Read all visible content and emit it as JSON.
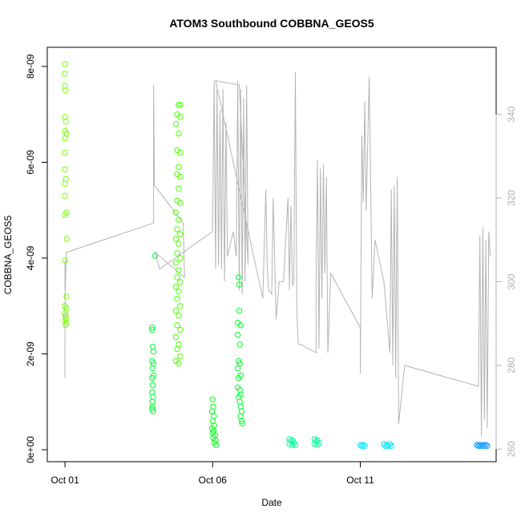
{
  "chart_data": {
    "type": "scatter",
    "title": "ATOM3 Southbound COBBNA_GEOS5",
    "xlabel": "Date",
    "ylabel": "COBBNA_GEOS5",
    "x_ticks": [
      "Oct 01",
      "Oct 06",
      "Oct 11"
    ],
    "x_tick_values": [
      1.0,
      6.0,
      11.0
    ],
    "xlim": [
      0.4,
      15.6
    ],
    "y_ticks": [
      "0e+00",
      "2e-09",
      "4e-09",
      "6e-09",
      "8e-09"
    ],
    "y_tick_values": [
      0,
      2e-09,
      4e-09,
      6e-09,
      8e-09
    ],
    "ylim": [
      -2.5e-10,
      8.4e-09
    ],
    "y2_ticks": [
      "260",
      "280",
      "300",
      "320",
      "340"
    ],
    "y2_tick_values": [
      260,
      280,
      300,
      320,
      340
    ],
    "y2lim": [
      257,
      356
    ],
    "colors": {
      "axis": "#000000",
      "secondary_axis": "#b0b0b0",
      "line": "#b4b4b4"
    },
    "scatter_series": [
      {
        "color": "#79ff00",
        "values": [
          [
            1.0,
            8.05e-09
          ],
          [
            1.0,
            7.85e-09
          ],
          [
            1.0,
            7.6e-09
          ],
          [
            1.02,
            7.5e-09
          ],
          [
            1.0,
            6.95e-09
          ],
          [
            1.03,
            6.85e-09
          ],
          [
            1.0,
            6.65e-09
          ],
          [
            1.05,
            6.6e-09
          ],
          [
            1.0,
            6.5e-09
          ],
          [
            1.0,
            6.2e-09
          ],
          [
            1.0,
            5.85e-09
          ],
          [
            1.03,
            5.65e-09
          ],
          [
            1.0,
            5.55e-09
          ],
          [
            1.0,
            5.3e-09
          ],
          [
            1.05,
            4.95e-09
          ],
          [
            1.0,
            4.9e-09
          ],
          [
            1.06,
            4.4e-09
          ],
          [
            1.0,
            3.95e-09
          ],
          [
            1.05,
            3.2e-09
          ],
          [
            1.0,
            3e-09
          ],
          [
            1.04,
            2.95e-09
          ],
          [
            1.0,
            2.85e-09
          ],
          [
            1.02,
            2.8e-09
          ],
          [
            1.03,
            2.75e-09
          ],
          [
            1.0,
            2.7e-09
          ],
          [
            1.05,
            2.65e-09
          ],
          [
            1.02,
            2.6e-09
          ]
        ]
      },
      {
        "color": "#00ff33",
        "values": [
          [
            4.05,
            4.05e-09
          ],
          [
            3.95,
            2.55e-09
          ],
          [
            3.95,
            2.5e-09
          ],
          [
            3.97,
            2.15e-09
          ],
          [
            4.0,
            2.05e-09
          ],
          [
            3.95,
            1.85e-09
          ],
          [
            3.99,
            1.8e-09
          ],
          [
            3.96,
            1.7e-09
          ],
          [
            4.0,
            1.55e-09
          ],
          [
            3.95,
            1.5e-09
          ],
          [
            3.97,
            1.35e-09
          ],
          [
            3.95,
            1.2e-09
          ],
          [
            3.98,
            1.1e-09
          ],
          [
            3.95,
            1e-09
          ],
          [
            3.97,
            9e-10
          ],
          [
            3.95,
            8.5e-10
          ],
          [
            3.98,
            8e-10
          ]
        ]
      },
      {
        "color": "#4cff00",
        "values": [
          [
            4.85,
            7.2e-09
          ],
          [
            4.9,
            7.2e-09
          ],
          [
            4.8,
            7e-09
          ],
          [
            4.9,
            6.95e-09
          ],
          [
            4.75,
            6.8e-09
          ],
          [
            4.85,
            6.6e-09
          ],
          [
            4.8,
            6.25e-09
          ],
          [
            4.9,
            6.2e-09
          ],
          [
            4.85,
            5.9e-09
          ],
          [
            4.8,
            5.75e-09
          ],
          [
            4.9,
            5.7e-09
          ],
          [
            4.85,
            5.45e-09
          ],
          [
            4.8,
            5.2e-09
          ],
          [
            4.9,
            5.15e-09
          ],
          [
            4.75,
            4.95e-09
          ],
          [
            4.85,
            4.8e-09
          ],
          [
            4.8,
            4.6e-09
          ],
          [
            4.9,
            4.5e-09
          ],
          [
            4.75,
            4.4e-09
          ],
          [
            4.85,
            4.3e-09
          ],
          [
            4.8,
            4.1e-09
          ],
          [
            4.9,
            4e-09
          ],
          [
            4.75,
            3.9e-09
          ],
          [
            4.85,
            3.75e-09
          ],
          [
            4.8,
            3.6e-09
          ],
          [
            4.9,
            3.5e-09
          ],
          [
            4.75,
            3.4e-09
          ],
          [
            4.85,
            3.3e-09
          ],
          [
            4.8,
            3.15e-09
          ],
          [
            4.9,
            3e-09
          ],
          [
            4.75,
            2.9e-09
          ],
          [
            4.85,
            2.8e-09
          ],
          [
            4.8,
            2.6e-09
          ],
          [
            4.9,
            2.5e-09
          ],
          [
            4.75,
            2.35e-09
          ],
          [
            4.85,
            2.2e-09
          ],
          [
            4.8,
            2.1e-09
          ],
          [
            4.9,
            1.95e-09
          ],
          [
            4.75,
            1.85e-09
          ],
          [
            4.85,
            1.8e-09
          ]
        ]
      },
      {
        "color": "#00ff19",
        "values": [
          [
            6.0,
            1.05e-09
          ],
          [
            6.02,
            9e-10
          ],
          [
            5.98,
            8e-10
          ],
          [
            6.04,
            7e-10
          ],
          [
            6.0,
            6e-10
          ],
          [
            6.05,
            5e-10
          ],
          [
            5.98,
            4.5e-10
          ],
          [
            6.03,
            4e-10
          ],
          [
            6.0,
            3.5e-10
          ],
          [
            6.08,
            3e-10
          ],
          [
            6.02,
            2.5e-10
          ],
          [
            6.1,
            2e-10
          ],
          [
            6.05,
            1.5e-10
          ],
          [
            6.12,
            1e-10
          ]
        ]
      },
      {
        "color": "#00ff2a",
        "values": [
          [
            6.88,
            3.6e-09
          ],
          [
            6.9,
            3.45e-09
          ],
          [
            6.9,
            2.9e-09
          ],
          [
            6.85,
            2.65e-09
          ],
          [
            6.95,
            2.6e-09
          ],
          [
            6.85,
            2.4e-09
          ],
          [
            6.92,
            2.2e-09
          ],
          [
            6.88,
            1.85e-09
          ],
          [
            6.92,
            1.8e-09
          ],
          [
            6.85,
            1.7e-09
          ],
          [
            6.95,
            1.55e-09
          ],
          [
            6.88,
            1.5e-09
          ],
          [
            6.85,
            1.3e-09
          ],
          [
            6.92,
            1.25e-09
          ],
          [
            6.95,
            1.15e-09
          ],
          [
            6.88,
            1.1e-09
          ],
          [
            6.92,
            1e-09
          ],
          [
            6.95,
            9e-10
          ],
          [
            6.98,
            8e-10
          ],
          [
            6.95,
            7e-10
          ],
          [
            6.98,
            6e-10
          ],
          [
            7.0,
            5.5e-10
          ]
        ]
      },
      {
        "color": "#00ff99",
        "values": [
          [
            8.6,
            2.2e-10
          ],
          [
            8.7,
            2e-10
          ],
          [
            8.65,
            1.8e-10
          ],
          [
            8.75,
            1.5e-10
          ],
          [
            8.6,
            1.2e-10
          ],
          [
            8.7,
            1e-10
          ],
          [
            8.8,
            1e-10
          ],
          [
            9.45,
            2.2e-10
          ],
          [
            9.55,
            2e-10
          ],
          [
            9.5,
            1.7e-10
          ],
          [
            9.6,
            1.4e-10
          ],
          [
            9.45,
            1.2e-10
          ],
          [
            9.55,
            1e-10
          ]
        ]
      },
      {
        "color": "#00e8ff",
        "values": [
          [
            11.0,
            1e-10
          ],
          [
            11.05,
            8e-11
          ],
          [
            11.1,
            1e-10
          ],
          [
            11.15,
            8e-11
          ],
          [
            11.8,
            1.2e-10
          ],
          [
            11.85,
            8e-11
          ],
          [
            11.9,
            1e-10
          ],
          [
            11.95,
            8e-11
          ],
          [
            12.0,
            1.2e-10
          ],
          [
            12.05,
            8e-11
          ]
        ]
      },
      {
        "color": "#0099ff",
        "values": [
          [
            14.95,
            1e-10
          ],
          [
            15.0,
            8e-11
          ],
          [
            15.05,
            1e-10
          ],
          [
            15.1,
            8e-11
          ],
          [
            15.15,
            1e-10
          ],
          [
            15.2,
            8e-11
          ],
          [
            15.25,
            1e-10
          ],
          [
            15.3,
            8e-11
          ]
        ]
      }
    ],
    "line_series": {
      "color": "#b4b4b4",
      "values": [
        [
          1.0,
          277
        ],
        [
          1.0,
          305
        ],
        [
          1.0,
          297
        ],
        [
          1.05,
          307
        ],
        [
          4.0,
          314
        ],
        [
          4.0,
          347
        ],
        [
          4.03,
          323
        ],
        [
          5.0,
          314
        ],
        [
          5.05,
          301
        ],
        [
          4.05,
          307
        ],
        [
          4.2,
          303
        ],
        [
          6.0,
          312
        ],
        [
          6.05,
          348
        ],
        [
          6.1,
          303
        ],
        [
          6.15,
          346
        ],
        [
          6.2,
          304
        ],
        [
          6.25,
          341
        ],
        [
          6.3,
          303
        ],
        [
          6.35,
          346
        ],
        [
          6.4,
          300
        ],
        [
          6.45,
          338
        ],
        [
          6.5,
          306
        ],
        [
          6.7,
          312
        ],
        [
          6.8,
          306
        ],
        [
          6.85,
          348
        ],
        [
          6.9,
          298
        ],
        [
          6.95,
          346
        ],
        [
          7.0,
          297
        ],
        [
          7.05,
          344
        ],
        [
          7.1,
          300
        ],
        [
          7.15,
          347
        ],
        [
          7.2,
          304
        ],
        [
          6.9,
          347
        ],
        [
          6.1,
          348
        ],
        [
          7.7,
          296
        ],
        [
          7.8,
          322
        ],
        [
          7.85,
          303
        ],
        [
          7.9,
          298
        ],
        [
          8.0,
          297
        ],
        [
          8.05,
          320
        ],
        [
          8.15,
          291
        ],
        [
          8.25,
          300
        ],
        [
          8.4,
          300
        ],
        [
          8.55,
          320
        ],
        [
          8.6,
          298
        ],
        [
          8.65,
          318
        ],
        [
          8.7,
          299
        ],
        [
          8.75,
          300
        ],
        [
          8.8,
          350
        ],
        [
          8.85,
          293
        ],
        [
          8.9,
          285
        ],
        [
          9.0,
          285
        ],
        [
          9.5,
          283
        ],
        [
          9.5,
          300
        ],
        [
          9.55,
          329
        ],
        [
          9.6,
          284
        ],
        [
          9.65,
          327
        ],
        [
          9.7,
          296
        ],
        [
          9.75,
          328
        ],
        [
          9.8,
          302
        ],
        [
          9.85,
          325
        ],
        [
          9.9,
          283
        ],
        [
          10.0,
          302
        ],
        [
          11.0,
          289
        ],
        [
          11.0,
          278
        ],
        [
          11.05,
          335
        ],
        [
          11.1,
          319
        ],
        [
          11.15,
          343
        ],
        [
          11.2,
          317
        ],
        [
          11.3,
          349
        ],
        [
          11.4,
          296
        ],
        [
          11.5,
          310
        ],
        [
          11.8,
          300
        ],
        [
          12.0,
          283
        ],
        [
          12.05,
          322
        ],
        [
          12.1,
          280
        ],
        [
          12.15,
          323
        ],
        [
          12.2,
          277
        ],
        [
          12.25,
          325
        ],
        [
          12.3,
          266
        ],
        [
          12.5,
          280
        ],
        [
          15.0,
          275
        ],
        [
          15.05,
          311
        ],
        [
          15.1,
          263
        ],
        [
          15.15,
          313
        ],
        [
          15.2,
          267
        ],
        [
          15.25,
          310
        ],
        [
          15.3,
          265
        ],
        [
          15.35,
          312
        ],
        [
          15.4,
          306
        ]
      ]
    }
  }
}
